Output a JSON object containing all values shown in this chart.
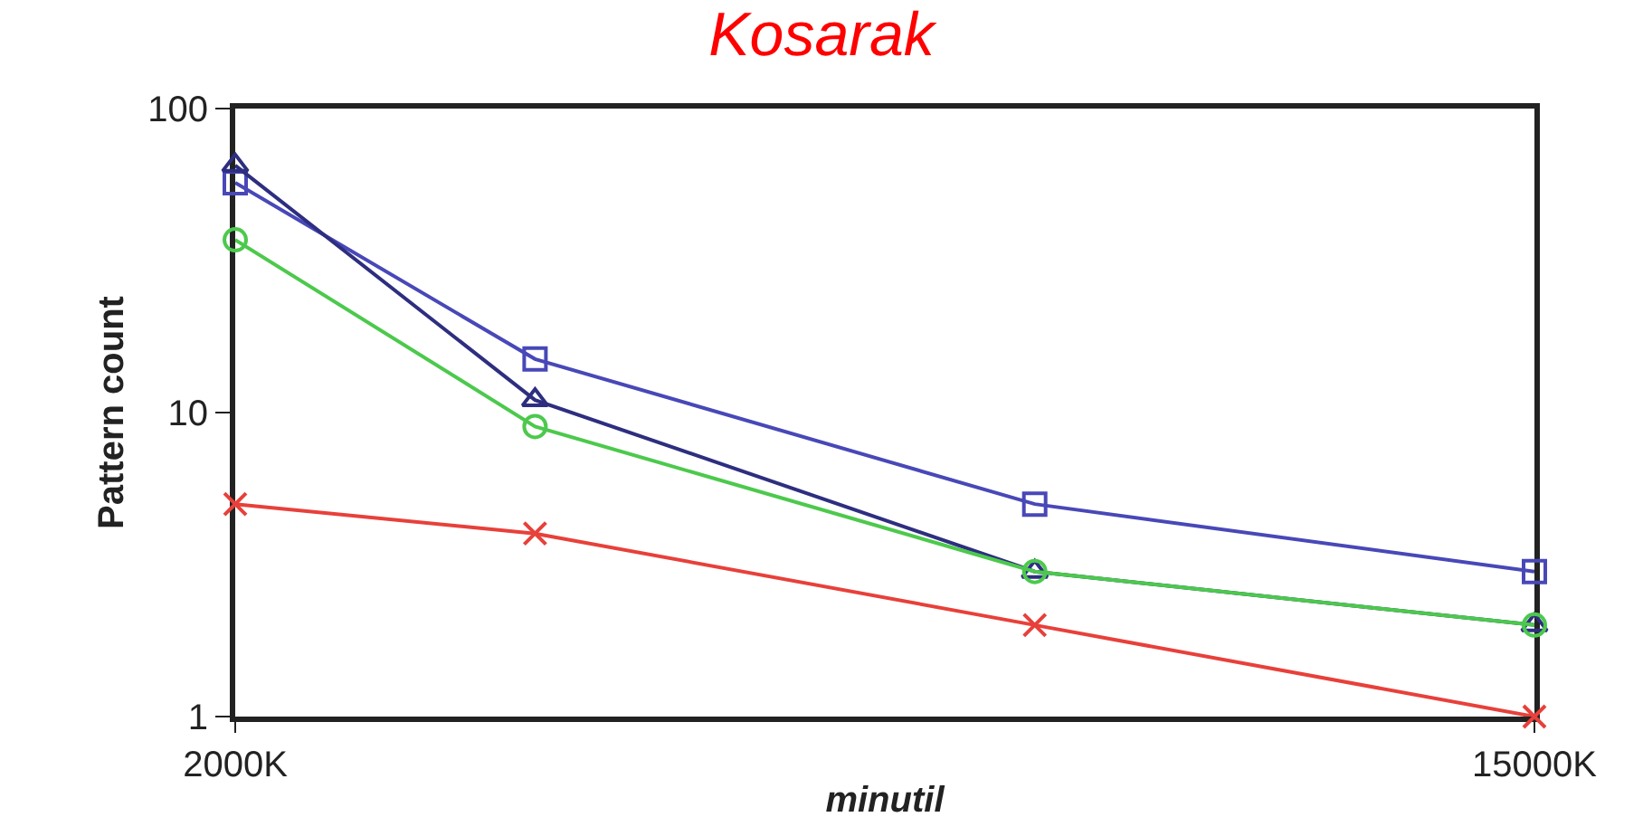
{
  "chart_data": {
    "type": "line",
    "title": "Kosarak",
    "xlabel": "minutil",
    "ylabel": "Pattern count",
    "log": "y",
    "xlim": [
      2000,
      15000
    ],
    "xticks": [
      {
        "value": 2000,
        "label": "2000K"
      },
      {
        "value": 15000,
        "label": "15000K"
      }
    ],
    "ylim": [
      1,
      100
    ],
    "yticks": [
      1,
      10,
      100
    ],
    "series": [
      {
        "color": "#4848b8",
        "marker": "square",
        "x": [
          2000,
          5000,
          10000,
          15000
        ],
        "values": [
          57,
          15,
          5,
          3
        ]
      },
      {
        "color": "#2e2e80",
        "marker": "triangle",
        "x": [
          2000,
          5000,
          10000,
          15000
        ],
        "values": [
          65,
          11,
          3,
          2
        ]
      },
      {
        "color": "#4cc94c",
        "marker": "circle",
        "x": [
          2000,
          5000,
          10000,
          15000
        ],
        "values": [
          37,
          9,
          3,
          2
        ]
      },
      {
        "color": "#e8403a",
        "marker": "cross",
        "x": [
          2000,
          5000,
          10000,
          15000
        ],
        "values": [
          5,
          4,
          2,
          1
        ]
      }
    ]
  }
}
